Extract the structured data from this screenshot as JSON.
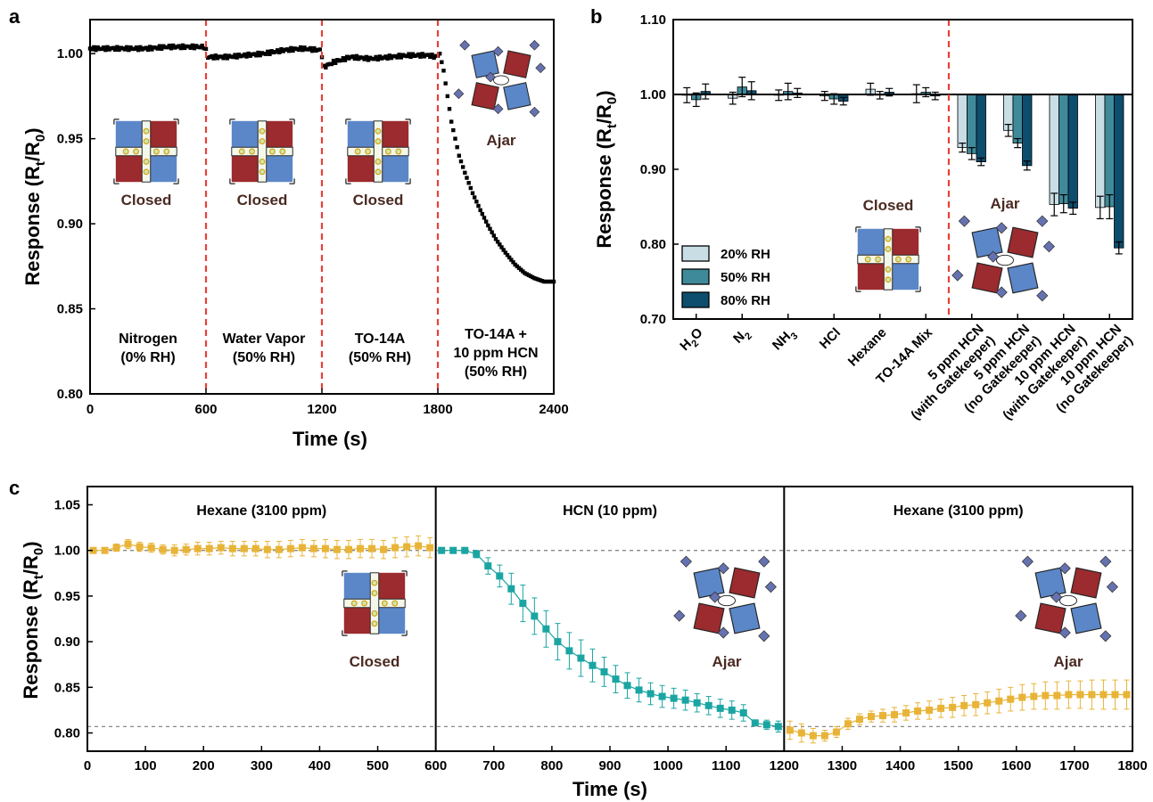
{
  "panel_labels": {
    "a": "a",
    "b": "b",
    "c": "c"
  },
  "colors": {
    "dots_a": "#000000",
    "divider": "#e8403a",
    "rh20": "#c9dde5",
    "rh50": "#3f8a9a",
    "rh80": "#0d4d6e",
    "hexane": "#e8b438",
    "hcn": "#1aa5a2",
    "pore_blue": "#5b87c9",
    "pore_red": "#9b2b2e",
    "guest": "#6672b0"
  },
  "schematics": {
    "closed": "Closed",
    "ajar": "Ajar"
  },
  "chart_data": [
    {
      "id": "a",
      "type": "scatter",
      "xlabel": "Time (s)",
      "ylabel_main": "Response (R",
      "ylabel_sub1": "t",
      "ylabel_mid": "/R",
      "ylabel_sub2": "0",
      "ylabel_end": ")",
      "xlim": [
        0,
        2400
      ],
      "ylim": [
        0.8,
        1.02
      ],
      "xticks": [
        "0",
        "600",
        "1200",
        "1800",
        "2400"
      ],
      "xtick_values": [
        0,
        600,
        1200,
        1800,
        2400
      ],
      "yticks": [
        "0.80",
        "0.85",
        "0.90",
        "0.95",
        "1.00"
      ],
      "ytick_values": [
        0.8,
        0.85,
        0.9,
        0.95,
        1.0
      ],
      "dividers": [
        600,
        1200,
        1800
      ],
      "segments": [
        {
          "start": 0,
          "end": 600,
          "lines": [
            "Nitrogen",
            "(0% RH)"
          ],
          "schematic": "Closed"
        },
        {
          "start": 600,
          "end": 1200,
          "lines": [
            "Water Vapor",
            "(50% RH)"
          ],
          "schematic": "Closed"
        },
        {
          "start": 1200,
          "end": 1800,
          "lines": [
            "TO-14A",
            "(50% RH)"
          ],
          "schematic": "Closed"
        },
        {
          "start": 1800,
          "end": 2400,
          "lines": [
            "TO-14A +",
            "10 ppm HCN",
            "(50% RH)"
          ],
          "schematic": "Ajar"
        }
      ],
      "series": [
        {
          "points": [
            [
              0,
              1.003
            ],
            [
              100,
              1.003
            ],
            [
              200,
              1.003
            ],
            [
              300,
              1.003
            ],
            [
              400,
              1.004
            ],
            [
              500,
              1.004
            ],
            [
              595,
              1.004
            ],
            [
              610,
              0.998
            ],
            [
              700,
              0.998
            ],
            [
              800,
              0.999
            ],
            [
              900,
              1.0
            ],
            [
              1000,
              1.002
            ],
            [
              1100,
              1.003
            ],
            [
              1195,
              1.002
            ],
            [
              1210,
              0.992
            ],
            [
              1260,
              0.995
            ],
            [
              1350,
              0.998
            ],
            [
              1450,
              0.997
            ],
            [
              1550,
              0.998
            ],
            [
              1650,
              0.999
            ],
            [
              1750,
              0.999
            ],
            [
              1795,
              0.998
            ],
            [
              1810,
              1.0
            ],
            [
              1830,
              0.99
            ],
            [
              1850,
              0.975
            ],
            [
              1870,
              0.96
            ],
            [
              1890,
              0.95
            ],
            [
              1910,
              0.94
            ],
            [
              1940,
              0.93
            ],
            [
              1980,
              0.918
            ],
            [
              2020,
              0.908
            ],
            [
              2060,
              0.899
            ],
            [
              2100,
              0.891
            ],
            [
              2150,
              0.883
            ],
            [
              2200,
              0.876
            ],
            [
              2250,
              0.871
            ],
            [
              2300,
              0.868
            ],
            [
              2350,
              0.866
            ],
            [
              2400,
              0.866
            ]
          ]
        }
      ]
    },
    {
      "id": "b",
      "type": "bar",
      "ylabel_main": "Response (R",
      "ylabel_sub1": "t",
      "ylabel_mid": "/R",
      "ylabel_sub2": "0",
      "ylabel_end": ")",
      "ylim": [
        0.7,
        1.1
      ],
      "yticks": [
        "0.70",
        "0.80",
        "0.90",
        "1.00",
        "1.10"
      ],
      "ytick_values": [
        0.7,
        0.8,
        0.9,
        1.0,
        1.1
      ],
      "baseline": 1.0,
      "divider_after": 6,
      "categories": [
        {
          "lines": [
            "H",
            "2",
            "O"
          ],
          "sub": true
        },
        {
          "lines": [
            "N",
            "2",
            ""
          ],
          "sub": true
        },
        {
          "lines": [
            "NH",
            "3",
            ""
          ],
          "sub": true
        },
        {
          "lines": [
            "HCl"
          ],
          "sub": false
        },
        {
          "lines": [
            "Hexane"
          ],
          "sub": false
        },
        {
          "lines": [
            "TO-14A Mix"
          ],
          "sub": false
        },
        {
          "lines": [
            "5 ppm HCN",
            "(with Gatekeeper)"
          ],
          "sub": false
        },
        {
          "lines": [
            "5 ppm HCN",
            "(no Gatekeeper)"
          ],
          "sub": false
        },
        {
          "lines": [
            "10 ppm HCN",
            "(with Gatekeeper)"
          ],
          "sub": false
        },
        {
          "lines": [
            "10 ppm HCN",
            "(no Gatekeeper)"
          ],
          "sub": false
        }
      ],
      "series": [
        {
          "name": "20% RH",
          "values": [
            0.999,
            0.995,
            0.999,
            0.998,
            1.007,
            1.001,
            0.929,
            0.952,
            0.853,
            0.849
          ],
          "errors": [
            0.01,
            0.008,
            0.007,
            0.006,
            0.008,
            0.012,
            0.006,
            0.008,
            0.015,
            0.015
          ]
        },
        {
          "name": "50% RH",
          "values": [
            0.993,
            1.01,
            1.004,
            0.994,
            0.999,
            1.003,
            0.921,
            0.935,
            0.854,
            0.85
          ],
          "errors": [
            0.009,
            0.013,
            0.011,
            0.007,
            0.005,
            0.006,
            0.008,
            0.006,
            0.012,
            0.016
          ]
        },
        {
          "name": "80% RH",
          "values": [
            1.004,
            1.005,
            1.002,
            0.991,
            1.003,
            0.998,
            0.91,
            0.905,
            0.848,
            0.795
          ],
          "errors": [
            0.01,
            0.012,
            0.006,
            0.005,
            0.005,
            0.005,
            0.005,
            0.006,
            0.008,
            0.008
          ]
        }
      ],
      "legend_position": "bottom-left",
      "labels": {
        "closed": "Closed",
        "ajar": "Ajar"
      }
    },
    {
      "id": "c",
      "type": "scatter",
      "xlabel": "Time (s)",
      "ylabel_main": "Response (R",
      "ylabel_sub1": "t",
      "ylabel_mid": "/R",
      "ylabel_sub2": "0",
      "ylabel_end": ")",
      "xlim": [
        0,
        1800
      ],
      "ylim": [
        0.78,
        1.07
      ],
      "xticks": [
        "0",
        "100",
        "200",
        "300",
        "400",
        "500",
        "600",
        "700",
        "800",
        "900",
        "1000",
        "1100",
        "1200",
        "1300",
        "1400",
        "1500",
        "1600",
        "1700",
        "1800"
      ],
      "xtick_values": [
        0,
        100,
        200,
        300,
        400,
        500,
        600,
        700,
        800,
        900,
        1000,
        1100,
        1200,
        1300,
        1400,
        1500,
        1600,
        1700,
        1800
      ],
      "yticks": [
        "0.80",
        "0.85",
        "0.90",
        "0.95",
        "1.00",
        "1.05"
      ],
      "ytick_values": [
        0.8,
        0.85,
        0.9,
        0.95,
        1.0,
        1.05
      ],
      "dividers": [
        600,
        1200
      ],
      "reference_lines": [
        1.0,
        0.807
      ],
      "segments": [
        {
          "start": 0,
          "end": 600,
          "title": "Hexane (3100 ppm)",
          "schematic": "Closed"
        },
        {
          "start": 600,
          "end": 1200,
          "title": "HCN (10 ppm)",
          "schematic": "Ajar"
        },
        {
          "start": 1200,
          "end": 1800,
          "title": "Hexane (3100 ppm)",
          "schematic": "Ajar"
        }
      ],
      "series": [
        {
          "color_key": "hexane",
          "x": [
            10,
            30,
            50,
            70,
            90,
            110,
            130,
            150,
            170,
            190,
            210,
            230,
            250,
            270,
            290,
            310,
            330,
            350,
            370,
            390,
            410,
            430,
            450,
            470,
            490,
            510,
            530,
            550,
            570,
            590
          ],
          "y": [
            1.0,
            1.0,
            1.003,
            1.007,
            1.004,
            1.003,
            1.001,
            1.0,
            1.001,
            1.002,
            1.002,
            1.003,
            1.002,
            1.002,
            1.002,
            1.001,
            1.001,
            1.002,
            1.003,
            1.002,
            1.002,
            1.001,
            1.001,
            1.002,
            1.002,
            1.001,
            1.003,
            1.004,
            1.005,
            1.003
          ],
          "err": [
            0.003,
            0.003,
            0.004,
            0.005,
            0.005,
            0.005,
            0.005,
            0.006,
            0.006,
            0.007,
            0.007,
            0.007,
            0.008,
            0.008,
            0.008,
            0.009,
            0.009,
            0.009,
            0.009,
            0.009,
            0.01,
            0.01,
            0.01,
            0.01,
            0.01,
            0.01,
            0.011,
            0.011,
            0.011,
            0.011
          ]
        },
        {
          "color_key": "hcn",
          "x": [
            610,
            630,
            650,
            670,
            690,
            710,
            730,
            750,
            770,
            790,
            810,
            830,
            850,
            870,
            890,
            910,
            930,
            950,
            970,
            990,
            1010,
            1030,
            1050,
            1070,
            1090,
            1110,
            1130,
            1150,
            1170,
            1190
          ],
          "y": [
            1.0,
            1.0,
            1.0,
            0.996,
            0.983,
            0.972,
            0.958,
            0.942,
            0.928,
            0.914,
            0.9,
            0.89,
            0.882,
            0.874,
            0.867,
            0.859,
            0.852,
            0.847,
            0.843,
            0.84,
            0.838,
            0.836,
            0.833,
            0.83,
            0.827,
            0.825,
            0.822,
            0.811,
            0.809,
            0.807
          ],
          "err": [
            0.002,
            0.002,
            0.003,
            0.004,
            0.009,
            0.012,
            0.017,
            0.02,
            0.02,
            0.02,
            0.02,
            0.02,
            0.02,
            0.018,
            0.016,
            0.015,
            0.014,
            0.013,
            0.012,
            0.012,
            0.011,
            0.011,
            0.01,
            0.01,
            0.01,
            0.01,
            0.009,
            0.003,
            0.005,
            0.006
          ]
        },
        {
          "color_key": "hexane",
          "x": [
            1210,
            1230,
            1250,
            1270,
            1290,
            1310,
            1330,
            1350,
            1370,
            1390,
            1410,
            1430,
            1450,
            1470,
            1490,
            1510,
            1530,
            1550,
            1570,
            1590,
            1610,
            1630,
            1650,
            1670,
            1690,
            1710,
            1730,
            1750,
            1770,
            1790
          ],
          "y": [
            0.803,
            0.8,
            0.797,
            0.797,
            0.801,
            0.81,
            0.815,
            0.818,
            0.819,
            0.82,
            0.822,
            0.824,
            0.825,
            0.827,
            0.828,
            0.83,
            0.831,
            0.833,
            0.835,
            0.837,
            0.839,
            0.84,
            0.841,
            0.841,
            0.842,
            0.842,
            0.842,
            0.842,
            0.842,
            0.842
          ],
          "err": [
            0.01,
            0.01,
            0.008,
            0.006,
            0.006,
            0.006,
            0.006,
            0.006,
            0.007,
            0.008,
            0.008,
            0.009,
            0.01,
            0.01,
            0.011,
            0.011,
            0.012,
            0.012,
            0.013,
            0.013,
            0.014,
            0.014,
            0.015,
            0.015,
            0.015,
            0.015,
            0.016,
            0.016,
            0.016,
            0.016
          ]
        }
      ]
    }
  ]
}
